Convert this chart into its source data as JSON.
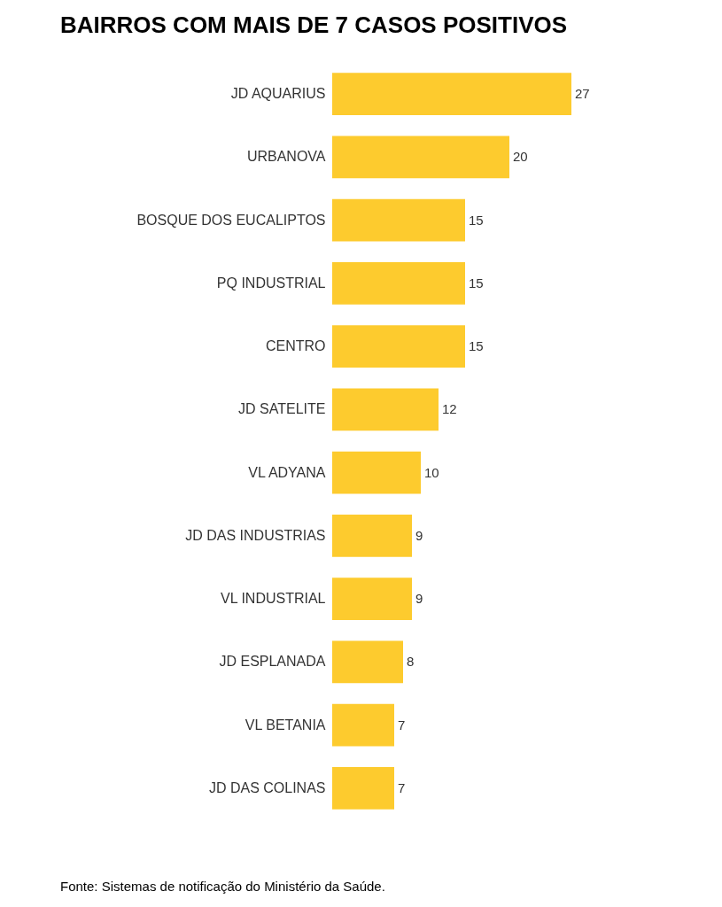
{
  "chart_data": {
    "type": "bar",
    "orientation": "horizontal",
    "title": "BAIRROS COM MAIS DE 7 CASOS POSITIVOS",
    "categories": [
      "JD AQUARIUS",
      "URBANOVA",
      "BOSQUE DOS EUCALIPTOS",
      "PQ INDUSTRIAL",
      "CENTRO",
      "JD SATELITE",
      "VL ADYANA",
      "JD DAS INDUSTRIAS",
      "VL INDUSTRIAL",
      "JD ESPLANADA",
      "VL BETANIA",
      "JD DAS COLINAS"
    ],
    "values": [
      27,
      20,
      15,
      15,
      15,
      12,
      10,
      9,
      9,
      8,
      7,
      7
    ],
    "color": "#fdcb2e",
    "data_labels": true,
    "grid": false,
    "annotations": [
      "Fonte: Sistemas de notificação do Ministério da Saúde."
    ]
  }
}
